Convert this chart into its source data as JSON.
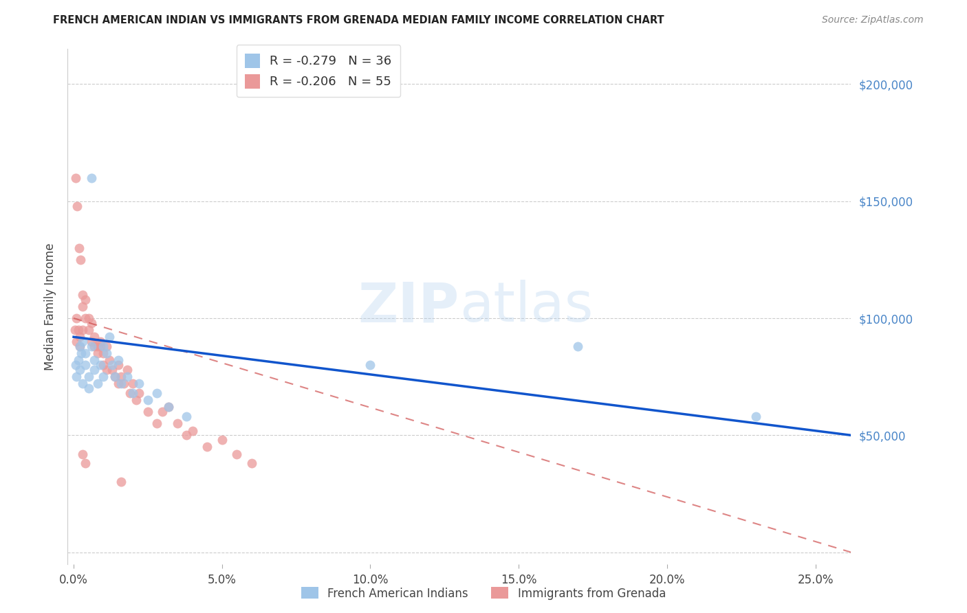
{
  "title": "FRENCH AMERICAN INDIAN VS IMMIGRANTS FROM GRENADA MEDIAN FAMILY INCOME CORRELATION CHART",
  "source": "Source: ZipAtlas.com",
  "ylabel": "Median Family Income",
  "xlabel_ticks": [
    "0.0%",
    "5.0%",
    "10.0%",
    "15.0%",
    "20.0%",
    "25.0%"
  ],
  "xlabel_vals": [
    0.0,
    0.05,
    0.1,
    0.15,
    0.2,
    0.25
  ],
  "ytick_vals": [
    0,
    50000,
    100000,
    150000,
    200000
  ],
  "ytick_labels": [
    "",
    "$50,000",
    "$100,000",
    "$150,000",
    "$200,000"
  ],
  "ylim": [
    -5000,
    215000
  ],
  "xlim": [
    -0.002,
    0.262
  ],
  "watermark_zip": "ZIP",
  "watermark_atlas": "atlas",
  "legend_blue_r": "-0.279",
  "legend_blue_n": "36",
  "legend_pink_r": "-0.206",
  "legend_pink_n": "55",
  "blue_color": "#9fc5e8",
  "pink_color": "#ea9999",
  "blue_line_color": "#1155cc",
  "pink_line_color": "#cc4444",
  "grid_color": "#cccccc",
  "scatter_alpha": 0.75,
  "scatter_size": 100,
  "blue_x": [
    0.0008,
    0.001,
    0.0015,
    0.002,
    0.002,
    0.0025,
    0.003,
    0.003,
    0.004,
    0.004,
    0.005,
    0.005,
    0.006,
    0.007,
    0.007,
    0.008,
    0.009,
    0.01,
    0.01,
    0.011,
    0.012,
    0.013,
    0.014,
    0.015,
    0.016,
    0.018,
    0.02,
    0.022,
    0.025,
    0.028,
    0.032,
    0.038,
    0.1,
    0.17,
    0.23,
    0.006
  ],
  "blue_y": [
    80000,
    75000,
    82000,
    88000,
    78000,
    85000,
    90000,
    72000,
    80000,
    85000,
    75000,
    70000,
    88000,
    78000,
    82000,
    72000,
    80000,
    88000,
    75000,
    85000,
    92000,
    80000,
    75000,
    82000,
    72000,
    75000,
    68000,
    72000,
    65000,
    68000,
    62000,
    58000,
    80000,
    88000,
    58000,
    160000
  ],
  "pink_x": [
    0.0005,
    0.001,
    0.001,
    0.0015,
    0.002,
    0.002,
    0.003,
    0.003,
    0.003,
    0.004,
    0.004,
    0.005,
    0.005,
    0.006,
    0.006,
    0.007,
    0.007,
    0.008,
    0.008,
    0.009,
    0.009,
    0.01,
    0.01,
    0.011,
    0.011,
    0.012,
    0.013,
    0.014,
    0.015,
    0.015,
    0.016,
    0.017,
    0.018,
    0.019,
    0.02,
    0.021,
    0.022,
    0.025,
    0.028,
    0.03,
    0.032,
    0.035,
    0.038,
    0.04,
    0.045,
    0.05,
    0.055,
    0.06,
    0.0008,
    0.0012,
    0.0018,
    0.0022,
    0.003,
    0.004,
    0.016
  ],
  "pink_y": [
    95000,
    90000,
    100000,
    95000,
    88000,
    92000,
    105000,
    110000,
    95000,
    100000,
    108000,
    95000,
    100000,
    90000,
    98000,
    88000,
    92000,
    88000,
    85000,
    90000,
    88000,
    85000,
    80000,
    88000,
    78000,
    82000,
    78000,
    75000,
    80000,
    72000,
    75000,
    72000,
    78000,
    68000,
    72000,
    65000,
    68000,
    60000,
    55000,
    60000,
    62000,
    55000,
    50000,
    52000,
    45000,
    48000,
    42000,
    38000,
    160000,
    148000,
    130000,
    125000,
    42000,
    38000,
    30000
  ],
  "blue_line_x0": 0.0,
  "blue_line_y0": 92000,
  "blue_line_x1": 0.262,
  "blue_line_y1": 50000,
  "pink_line_x0": 0.0,
  "pink_line_y0": 100000,
  "pink_line_x1": 0.262,
  "pink_line_y1": 0
}
